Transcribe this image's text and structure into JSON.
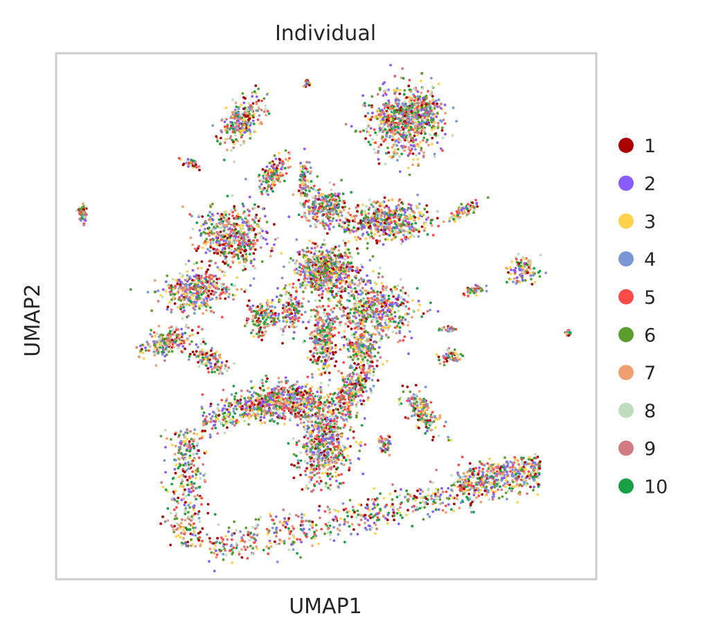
{
  "chart_data": {
    "type": "scatter",
    "title": "Individual",
    "xlabel": "UMAP1",
    "ylabel": "UMAP2",
    "grid": false,
    "ticks": "none",
    "legend_placement": "right",
    "series": [
      {
        "name": "1",
        "color": "#aa0000"
      },
      {
        "name": "2",
        "color": "#8a5cff"
      },
      {
        "name": "3",
        "color": "#ffd24d"
      },
      {
        "name": "4",
        "color": "#7a96d4"
      },
      {
        "name": "5",
        "color": "#ff4a4a"
      },
      {
        "name": "6",
        "color": "#5c9e2e"
      },
      {
        "name": "7",
        "color": "#f0a070"
      },
      {
        "name": "8",
        "color": "#bfdcbd"
      },
      {
        "name": "9",
        "color": "#d37b82"
      },
      {
        "name": "10",
        "color": "#18a044"
      }
    ]
  }
}
